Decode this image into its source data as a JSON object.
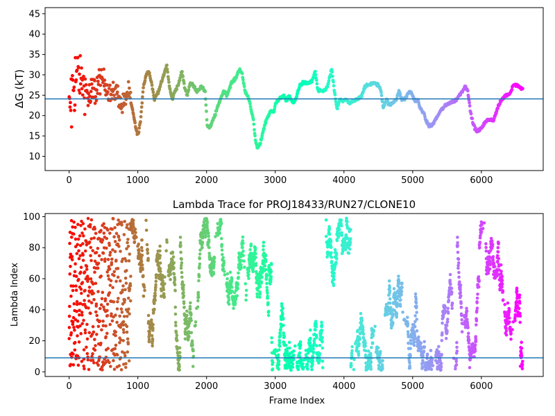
{
  "chart_data": [
    {
      "type": "scatter",
      "title": "",
      "xlabel": "",
      "ylabel": "ΔG (kT)",
      "xlim": [
        -350,
        6900
      ],
      "ylim": [
        6.5,
        46.5
      ],
      "xticks": [
        0,
        1000,
        2000,
        3000,
        4000,
        5000,
        6000
      ],
      "yticks": [
        10,
        15,
        20,
        25,
        30,
        35,
        40,
        45
      ],
      "hline": 24.1,
      "hline_color": "#1f77b4",
      "colormap": "rainbow",
      "x_range": [
        0,
        6600
      ],
      "trace_points": [
        [
          0,
          20
        ],
        [
          60,
          28
        ],
        [
          120,
          30
        ],
        [
          200,
          28
        ],
        [
          300,
          24
        ],
        [
          400,
          27
        ],
        [
          500,
          29
        ],
        [
          600,
          25
        ],
        [
          700,
          26
        ],
        [
          760,
          22
        ],
        [
          820,
          24
        ],
        [
          860,
          26
        ],
        [
          900,
          23
        ],
        [
          940,
          20
        ],
        [
          980,
          16
        ],
        [
          1010,
          15.5
        ],
        [
          1040,
          19
        ],
        [
          1080,
          27
        ],
        [
          1120,
          30
        ],
        [
          1160,
          31
        ],
        [
          1200,
          28
        ],
        [
          1240,
          24
        ],
        [
          1300,
          26
        ],
        [
          1380,
          30
        ],
        [
          1420,
          32.5
        ],
        [
          1460,
          27
        ],
        [
          1500,
          24
        ],
        [
          1540,
          26
        ],
        [
          1600,
          28
        ],
        [
          1640,
          31
        ],
        [
          1680,
          27
        ],
        [
          1720,
          25
        ],
        [
          1760,
          28
        ],
        [
          1800,
          27.5
        ],
        [
          1860,
          26
        ],
        [
          1920,
          27
        ],
        [
          1980,
          26
        ],
        [
          2010,
          17.5
        ],
        [
          2050,
          17
        ],
        [
          2120,
          20
        ],
        [
          2200,
          24
        ],
        [
          2250,
          26
        ],
        [
          2300,
          25
        ],
        [
          2360,
          28
        ],
        [
          2420,
          29
        ],
        [
          2480,
          31.5
        ],
        [
          2520,
          30
        ],
        [
          2560,
          26
        ],
        [
          2620,
          24
        ],
        [
          2680,
          19
        ],
        [
          2710,
          14
        ],
        [
          2740,
          12
        ],
        [
          2780,
          13
        ],
        [
          2820,
          16
        ],
        [
          2870,
          19
        ],
        [
          2930,
          21
        ],
        [
          2980,
          21
        ],
        [
          3000,
          23
        ],
        [
          3060,
          24
        ],
        [
          3120,
          25
        ],
        [
          3160,
          23.5
        ],
        [
          3200,
          25
        ],
        [
          3260,
          23
        ],
        [
          3300,
          24
        ],
        [
          3330,
          26
        ],
        [
          3360,
          27.5
        ],
        [
          3400,
          28
        ],
        [
          3480,
          28
        ],
        [
          3540,
          28.5
        ],
        [
          3580,
          31
        ],
        [
          3620,
          26
        ],
        [
          3700,
          26
        ],
        [
          3760,
          27
        ],
        [
          3820,
          31.5
        ],
        [
          3860,
          26
        ],
        [
          3900,
          21.5
        ],
        [
          3940,
          24
        ],
        [
          3980,
          23.5
        ],
        [
          4020,
          24
        ],
        [
          4080,
          23
        ],
        [
          4140,
          23.5
        ],
        [
          4200,
          24
        ],
        [
          4260,
          25
        ],
        [
          4300,
          27
        ],
        [
          4360,
          27.5
        ],
        [
          4420,
          28
        ],
        [
          4500,
          27.5
        ],
        [
          4540,
          26
        ],
        [
          4570,
          22
        ],
        [
          4620,
          24
        ],
        [
          4660,
          22.5
        ],
        [
          4700,
          23
        ],
        [
          4760,
          24
        ],
        [
          4800,
          26
        ],
        [
          4840,
          24
        ],
        [
          4880,
          24
        ],
        [
          4920,
          25
        ],
        [
          4960,
          26
        ],
        [
          5000,
          25
        ],
        [
          5020,
          24
        ],
        [
          5060,
          23.5
        ],
        [
          5080,
          24
        ],
        [
          5100,
          22
        ],
        [
          5150,
          21
        ],
        [
          5200,
          18.5
        ],
        [
          5240,
          17.5
        ],
        [
          5280,
          17.5
        ],
        [
          5350,
          19.5
        ],
        [
          5400,
          21
        ],
        [
          5450,
          22
        ],
        [
          5520,
          23
        ],
        [
          5600,
          23.5
        ],
        [
          5640,
          24
        ],
        [
          5680,
          25
        ],
        [
          5720,
          26
        ],
        [
          5760,
          27
        ],
        [
          5800,
          26.5
        ],
        [
          5840,
          21
        ],
        [
          5880,
          18
        ],
        [
          5930,
          16
        ],
        [
          5980,
          16.5
        ],
        [
          6040,
          18
        ],
        [
          6100,
          19
        ],
        [
          6180,
          19
        ],
        [
          6240,
          22
        ],
        [
          6300,
          24
        ],
        [
          6360,
          25
        ],
        [
          6420,
          25.5
        ],
        [
          6460,
          27.5
        ],
        [
          6520,
          27.5
        ],
        [
          6560,
          27
        ],
        [
          6600,
          26.5
        ]
      ]
    },
    {
      "type": "scatter",
      "title": "Lambda Trace for PROJ18433/RUN27/CLONE10",
      "xlabel": "Frame Index",
      "ylabel": "Lambda Index",
      "xlim": [
        -350,
        6900
      ],
      "ylim": [
        -3,
        102
      ],
      "xticks": [
        0,
        1000,
        2000,
        3000,
        4000,
        5000,
        6000
      ],
      "yticks": [
        0,
        20,
        40,
        60,
        80,
        100
      ],
      "hline": 9,
      "hline_color": "#1f77b4",
      "colormap": "rainbow",
      "x_range": [
        0,
        6600
      ],
      "lambda_min": 1,
      "lambda_max": 99
    }
  ]
}
